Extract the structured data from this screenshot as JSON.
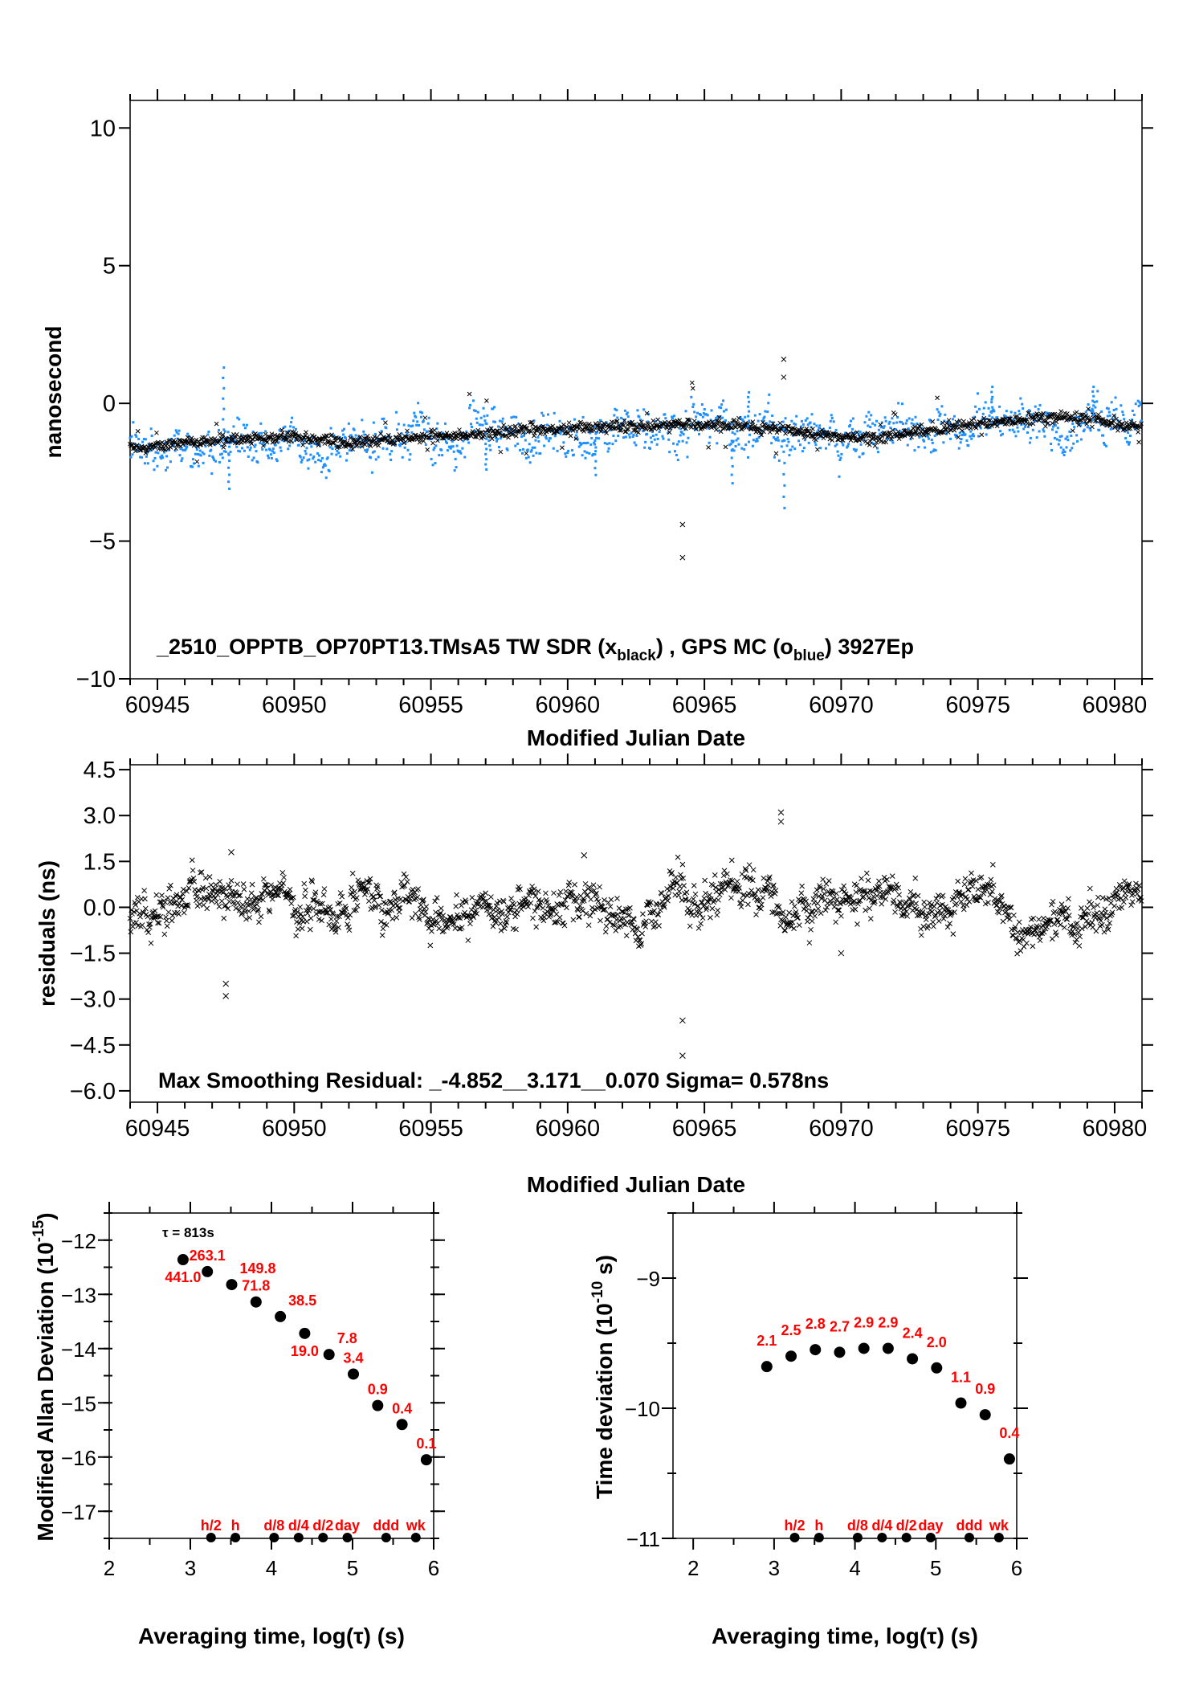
{
  "colors": {
    "gps": "#1e90ff",
    "tw": "#000000",
    "labels": "#ff0000",
    "frame": "#000000"
  },
  "chart_data": [
    {
      "type": "scatter",
      "id": "timeseries",
      "annotation": {
        "main": "_2510_OPPTB_OP70PT13.TMsA5    TW SDR (x",
        "sub1": "black",
        "mid": ") ,  GPS MC (o",
        "sub2": "blue",
        "end": ")  3927Ep"
      },
      "xlabel": "Modified Julian Date",
      "ylabel": "nanosecond",
      "xlim": [
        60944,
        60981
      ],
      "ylim": [
        -10,
        11
      ],
      "xticks": [
        "60945",
        "60950",
        "60955",
        "60960",
        "60965",
        "60970",
        "60975",
        "60980"
      ],
      "yticks": [
        "10",
        "5",
        "0",
        "−5",
        "−10"
      ],
      "series": [
        {
          "marker": "x",
          "color": "#000000",
          "trend": [
            [
              60944,
              -1.55
            ],
            [
              60945,
              -1.6
            ],
            [
              60946,
              -1.4
            ],
            [
              60947,
              -1.35
            ],
            [
              60948,
              -1.3
            ],
            [
              60949,
              -1.25
            ],
            [
              60950,
              -1.2
            ],
            [
              60951,
              -1.3
            ],
            [
              60952,
              -1.45
            ],
            [
              60953,
              -1.35
            ],
            [
              60954,
              -1.25
            ],
            [
              60955,
              -1.2
            ],
            [
              60956,
              -1.15
            ],
            [
              60957,
              -1.1
            ],
            [
              60958,
              -1.0
            ],
            [
              60959,
              -0.95
            ],
            [
              60960,
              -0.9
            ],
            [
              60961,
              -0.85
            ],
            [
              60962,
              -0.85
            ],
            [
              60963,
              -0.8
            ],
            [
              60964,
              -0.75
            ],
            [
              60965,
              -0.8
            ],
            [
              60966,
              -0.75
            ],
            [
              60967,
              -0.85
            ],
            [
              60968,
              -0.95
            ],
            [
              60969,
              -1.1
            ],
            [
              60970,
              -1.2
            ],
            [
              60971,
              -1.25
            ],
            [
              60972,
              -1.15
            ],
            [
              60973,
              -1.0
            ],
            [
              60974,
              -0.85
            ],
            [
              60975,
              -0.75
            ],
            [
              60976,
              -0.65
            ],
            [
              60977,
              -0.55
            ],
            [
              60978,
              -0.5
            ],
            [
              60979,
              -0.55
            ],
            [
              60980,
              -0.75
            ],
            [
              60981,
              -0.9
            ]
          ],
          "outliers": [
            [
              60964.2,
              -4.4
            ],
            [
              60964.2,
              -5.6
            ],
            [
              60967.9,
              1.6
            ],
            [
              60967.9,
              0.95
            ]
          ]
        },
        {
          "marker": "o",
          "color": "#1e90ff",
          "spikes": [
            [
              60947.4,
              1.3
            ],
            [
              60947.6,
              -3.1
            ],
            [
              60957.0,
              -2.4
            ],
            [
              60961.0,
              -2.6
            ],
            [
              60966.0,
              -2.9
            ],
            [
              60966.6,
              0.4
            ],
            [
              60967.9,
              -3.8
            ],
            [
              60975.5,
              0.6
            ],
            [
              60979.2,
              0.6
            ]
          ]
        }
      ]
    },
    {
      "type": "scatter",
      "id": "residuals",
      "annotation": "Max Smoothing Residual: _-4.852__3.171__0.070  Sigma= 0.578ns",
      "xlabel": "Modified Julian Date",
      "ylabel": "residuals (ns)",
      "xlim": [
        60944,
        60981
      ],
      "ylim": [
        -6.37,
        4.66
      ],
      "xticks": [
        "60945",
        "60950",
        "60955",
        "60960",
        "60965",
        "60970",
        "60975",
        "60980"
      ],
      "yticks": [
        "4.5",
        "3.0",
        "1.5",
        "0.0",
        "−1.5",
        "−3.0",
        "−4.5",
        "−6.0"
      ],
      "sigma": 0.578,
      "outliers": [
        [
          60964.2,
          -3.7
        ],
        [
          60964.2,
          -4.85
        ],
        [
          60967.8,
          3.1
        ],
        [
          60967.8,
          2.8
        ],
        [
          60947.5,
          -2.9
        ],
        [
          60947.5,
          -2.5
        ],
        [
          60947.7,
          1.8
        ],
        [
          60970.0,
          -1.5
        ],
        [
          60960.6,
          1.7
        ]
      ]
    },
    {
      "type": "scatter",
      "id": "mdev",
      "xlabel": "Averaging time, log(τ) (s)",
      "ylabel": "Modified Allan Deviation (10",
      "ylabel_exp": "-15",
      "ylabel_end": ")",
      "note": "τ = 813s",
      "xlim": [
        2,
        6
      ],
      "ylim": [
        -17.5,
        -11.5
      ],
      "xticks": [
        "2",
        "3",
        "4",
        "5",
        "6"
      ],
      "yticks": [
        "−12",
        "−13",
        "−14",
        "−15",
        "−16",
        "−17"
      ],
      "x": [
        2.91,
        3.21,
        3.51,
        3.81,
        4.11,
        4.41,
        4.71,
        5.01,
        5.31,
        5.61,
        5.91
      ],
      "labels": [
        "441.0",
        "263.1",
        "149.8",
        "71.8",
        "38.5",
        "19.0",
        "7.8",
        "3.4",
        "0.9",
        "0.4",
        "0.1"
      ],
      "y": [
        -12.36,
        -12.58,
        -12.82,
        -13.14,
        -13.41,
        -13.72,
        -14.11,
        -14.47,
        -15.05,
        -15.4,
        -16.05
      ],
      "markers": [
        {
          "label": "h/2",
          "x": 3.255
        },
        {
          "label": "h",
          "x": 3.556
        },
        {
          "label": "d/8",
          "x": 4.033
        },
        {
          "label": "d/4",
          "x": 4.335
        },
        {
          "label": "d/2",
          "x": 4.636
        },
        {
          "label": "day",
          "x": 4.936
        },
        {
          "label": "ddd",
          "x": 5.414
        },
        {
          "label": "wk",
          "x": 5.78
        }
      ]
    },
    {
      "type": "scatter",
      "id": "tdev",
      "xlabel": "Averaging time, log(τ) (s)",
      "ylabel": "Time deviation (10",
      "ylabel_exp": "-10",
      "ylabel_end": " s)",
      "xlim": [
        1.75,
        6
      ],
      "ylim": [
        -11,
        -8.5
      ],
      "xticks": [
        "2",
        "3",
        "4",
        "5",
        "6"
      ],
      "yticks": [
        "−9",
        "−10",
        "−11"
      ],
      "x": [
        2.91,
        3.21,
        3.51,
        3.81,
        4.11,
        4.41,
        4.71,
        5.01,
        5.31,
        5.61,
        5.91
      ],
      "labels": [
        "2.1",
        "2.5",
        "2.8",
        "2.7",
        "2.9",
        "2.9",
        "2.4",
        "2.0",
        "1.1",
        "0.9",
        "0.4"
      ],
      "y": [
        -9.68,
        -9.6,
        -9.55,
        -9.57,
        -9.54,
        -9.54,
        -9.62,
        -9.69,
        -9.96,
        -10.05,
        -10.39
      ],
      "markers": [
        {
          "label": "h/2",
          "x": 3.255
        },
        {
          "label": "h",
          "x": 3.556
        },
        {
          "label": "d/8",
          "x": 4.033
        },
        {
          "label": "d/4",
          "x": 4.335
        },
        {
          "label": "d/2",
          "x": 4.636
        },
        {
          "label": "day",
          "x": 4.936
        },
        {
          "label": "ddd",
          "x": 5.414
        },
        {
          "label": "wk",
          "x": 5.78
        }
      ]
    }
  ]
}
